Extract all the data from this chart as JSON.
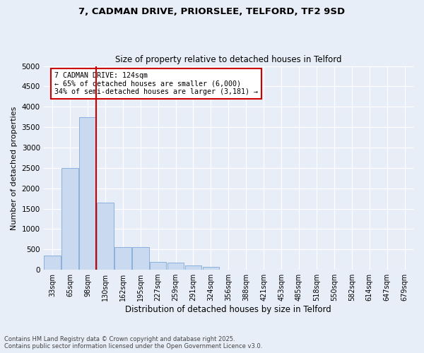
{
  "title_line1": "7, CADMAN DRIVE, PRIORSLEE, TELFORD, TF2 9SD",
  "title_line2": "Size of property relative to detached houses in Telford",
  "xlabel": "Distribution of detached houses by size in Telford",
  "ylabel": "Number of detached properties",
  "categories": [
    "33sqm",
    "65sqm",
    "98sqm",
    "130sqm",
    "162sqm",
    "195sqm",
    "227sqm",
    "259sqm",
    "291sqm",
    "324sqm",
    "356sqm",
    "388sqm",
    "421sqm",
    "453sqm",
    "485sqm",
    "518sqm",
    "550sqm",
    "582sqm",
    "614sqm",
    "647sqm",
    "679sqm"
  ],
  "values": [
    350,
    2500,
    3750,
    1650,
    550,
    550,
    200,
    175,
    100,
    75,
    0,
    0,
    0,
    0,
    0,
    0,
    0,
    0,
    0,
    0,
    0
  ],
  "bar_color": "#c9d9f0",
  "bar_edge_color": "#7da8d8",
  "vline_x_idx": 2.5,
  "vline_color": "#cc0000",
  "annotation_text": "7 CADMAN DRIVE: 124sqm\n← 65% of detached houses are smaller (6,000)\n34% of semi-detached houses are larger (3,181) →",
  "annotation_box_color": "#cc0000",
  "ylim": [
    0,
    5000
  ],
  "yticks": [
    0,
    500,
    1000,
    1500,
    2000,
    2500,
    3000,
    3500,
    4000,
    4500,
    5000
  ],
  "footer_line1": "Contains HM Land Registry data © Crown copyright and database right 2025.",
  "footer_line2": "Contains public sector information licensed under the Open Government Licence v3.0.",
  "bg_color": "#e8eef8",
  "plot_bg_color": "#e8eef8",
  "grid_color": "#ffffff",
  "figsize": [
    6.0,
    5.0
  ],
  "dpi": 100
}
